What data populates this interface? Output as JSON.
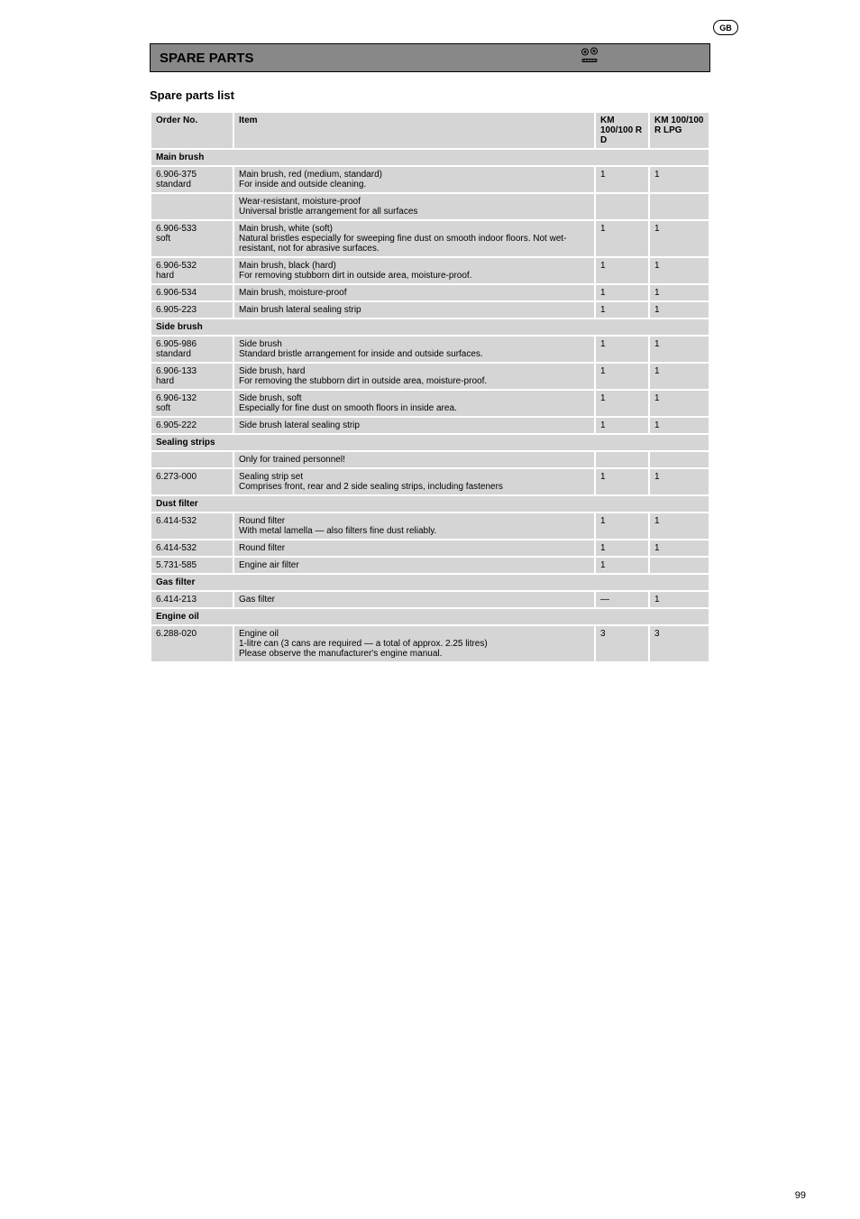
{
  "badge": "GB",
  "title": "SPARE PARTS",
  "subtitle": "Spare parts list",
  "page_number": "99",
  "table": {
    "headers": [
      "Order No.",
      "Item",
      "KM 100/100 R D",
      "KM 100/100 R LPG"
    ],
    "sections": [
      {
        "label": "Main brush",
        "rows": [
          [
            {
              "t": "6.906-375",
              "note": "standard"
            },
            "Main brush, red (medium, standard)\nFor inside and outside cleaning.",
            "1",
            "1"
          ],
          [
            "",
            "Wear-resistant, moisture-proof\nUniversal bristle arrangement for all surfaces",
            "",
            ""
          ],
          [
            {
              "t": "6.906-533",
              "note": "soft"
            },
            "Main brush, white (soft)\nNatural bristles especially for sweeping fine dust on smooth indoor floors. Not wet-resistant, not for abrasive surfaces.",
            "1",
            "1"
          ],
          [
            {
              "t": "6.906-532",
              "note": "hard"
            },
            "Main brush, black (hard)\nFor removing stubborn dirt in outside area, moisture-proof.",
            "1",
            "1"
          ],
          [
            "6.906-534",
            "Main brush, moisture-proof",
            "1",
            "1"
          ],
          [
            "6.905-223",
            "Main brush lateral sealing strip",
            "1",
            "1"
          ]
        ]
      },
      {
        "label": "Side brush",
        "rows": [
          [
            {
              "t": "6.905-986",
              "note": "standard"
            },
            "Side brush\nStandard bristle arrangement for inside and outside surfaces.",
            "1",
            "1"
          ],
          [
            {
              "t": "6.906-133",
              "note": "hard"
            },
            "Side brush, hard\nFor removing the stubborn dirt in outside area, moisture-proof.",
            "1",
            "1"
          ],
          [
            {
              "t": "6.906-132",
              "note": "soft"
            },
            "Side brush, soft\nEspecially for fine dust on smooth floors in inside area.",
            "1",
            "1"
          ],
          [
            "6.905-222",
            "Side brush lateral sealing strip",
            "1",
            "1"
          ]
        ]
      },
      {
        "label": "Sealing strips",
        "rows": [
          [
            "",
            "Only for trained personnel!",
            "",
            ""
          ],
          [
            "6.273-000",
            "Sealing strip set\nComprises front, rear and 2 side sealing strips, including fasteners",
            "1",
            "1"
          ]
        ]
      },
      {
        "label": "Dust filter",
        "rows": [
          [
            "6.414-532",
            "Round filter\nWith metal lamella — also filters fine dust reliably.",
            "1",
            "1"
          ],
          [
            "6.414-532",
            "Round filter",
            "1",
            "1"
          ],
          [
            "5.731-585",
            "Engine air filter",
            "1",
            ""
          ]
        ]
      },
      {
        "label": "Gas filter",
        "rows": [
          [
            "6.414-213",
            "Gas filter",
            "—",
            "1"
          ]
        ]
      },
      {
        "label": "Engine oil",
        "rows": [
          [
            "6.288-020",
            "Engine oil\n1-litre can (3 cans are required — a total of approx. 2.25 litres)\nPlease observe the manufacturer's engine manual.",
            "3",
            "3"
          ]
        ]
      }
    ]
  }
}
